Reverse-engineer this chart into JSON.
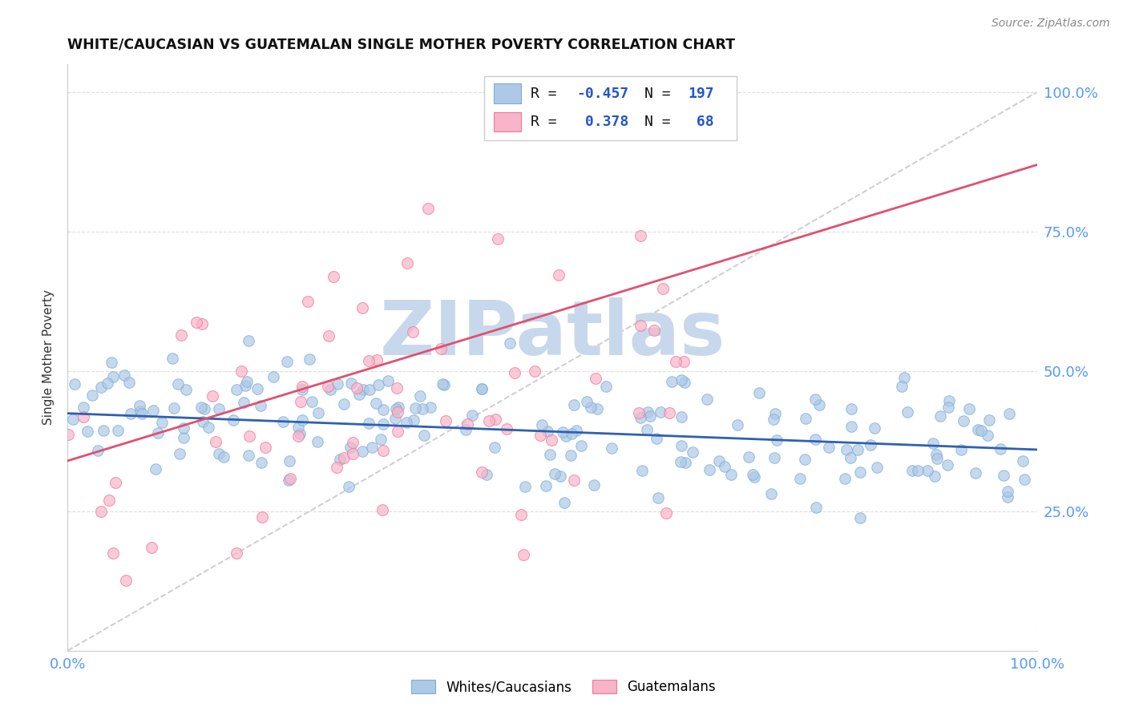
{
  "title": "WHITE/CAUCASIAN VS GUATEMALAN SINGLE MOTHER POVERTY CORRELATION CHART",
  "source": "Source: ZipAtlas.com",
  "ylabel": "Single Mother Poverty",
  "blue_fill": "#aec8e8",
  "blue_edge": "#7aafd4",
  "pink_fill": "#f8b4c8",
  "pink_edge": "#f07898",
  "blue_line_color": "#3060b0",
  "pink_line_color": "#e05070",
  "diagonal_color": "#c8c8c8",
  "tick_color": "#5599ff",
  "legend_text_color": "#2255cc",
  "legend_label_blue": "Whites/Caucasians",
  "legend_label_pink": "Guatemalans",
  "legend_R_blue": "-0.457",
  "legend_N_blue": "197",
  "legend_R_pink": " 0.378",
  "legend_N_pink": " 68",
  "watermark_text": "ZIPatlas",
  "watermark_color": "#c8d8ec",
  "n_blue": 197,
  "n_pink": 68,
  "blue_trend": [
    0.0,
    0.425,
    1.0,
    0.36
  ],
  "pink_trend": [
    0.0,
    0.34,
    1.0,
    0.87
  ],
  "ylim": [
    0.0,
    1.05
  ],
  "y_ticks": [
    0.25,
    0.5,
    0.75,
    1.0
  ],
  "y_tick_labels": [
    "25.0%",
    "50.0%",
    "75.0%",
    "100.0%"
  ],
  "x_tick_labels": [
    "0.0%",
    "100.0%"
  ],
  "grid_color": "#dddddd"
}
